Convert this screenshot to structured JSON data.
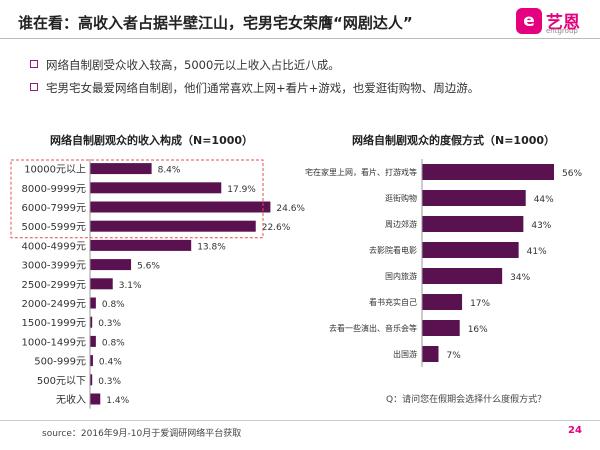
{
  "title": "谁在看：高收入者占据半壁江山，宅男宅女荣膺“网剧达人”",
  "logo": {
    "mark": "e",
    "text": "艺恩",
    "sub": "entgroup"
  },
  "bullets": [
    "网络自制剧受众收入较高，5000元以上收入占比近八成。",
    "宅男宅女最爱网络自制剧，他们通常喜欢上网+看片+游戏，也爱逛街购物、周边游。"
  ],
  "chart_data": [
    {
      "type": "bar",
      "orientation": "horizontal",
      "title": "网络自制剧观众的收入构成（N=1000）",
      "categories": [
        "10000元以上",
        "8000-9999元",
        "6000-7999元",
        "5000-5999元",
        "4000-4999元",
        "3000-3999元",
        "2500-2999元",
        "2000-2499元",
        "1500-1999元",
        "1000-1499元",
        "500-999元",
        "500元以下",
        "无收入"
      ],
      "values": [
        8.4,
        17.9,
        24.6,
        22.6,
        13.8,
        5.6,
        3.1,
        0.8,
        0.3,
        0.8,
        0.4,
        0.3,
        1.4
      ],
      "value_labels": [
        "8.4%",
        "17.9%",
        "24.6%",
        "22.6%",
        "13.8%",
        "5.6%",
        "3.1%",
        "0.8%",
        "0.3%",
        "0.8%",
        "0.4%",
        "0.3%",
        "1.4%"
      ],
      "highlight_categories": [
        "10000元以上",
        "8000-9999元",
        "6000-7999元",
        "5000-5999元"
      ],
      "color": "#5a1150"
    },
    {
      "type": "bar",
      "orientation": "horizontal",
      "title": "网络自制剧观众的度假方式（N=1000）",
      "categories": [
        "宅在家里上网，看片、打游戏等",
        "逛街购物",
        "周边郊游",
        "去影院看电影",
        "国内旅游",
        "看书充实自己",
        "去看一些演出、音乐会等",
        "出国游"
      ],
      "values": [
        56,
        44,
        43,
        41,
        34,
        17,
        16,
        7
      ],
      "value_labels": [
        "56%",
        "44%",
        "43%",
        "41%",
        "34%",
        "17%",
        "16%",
        "7%"
      ],
      "color": "#5a1150"
    }
  ],
  "note": "Q：请问您在假期会选择什么度假方式？",
  "source": "source：2016年9月-10月于爱调研网络平台获取",
  "page_number": "24"
}
